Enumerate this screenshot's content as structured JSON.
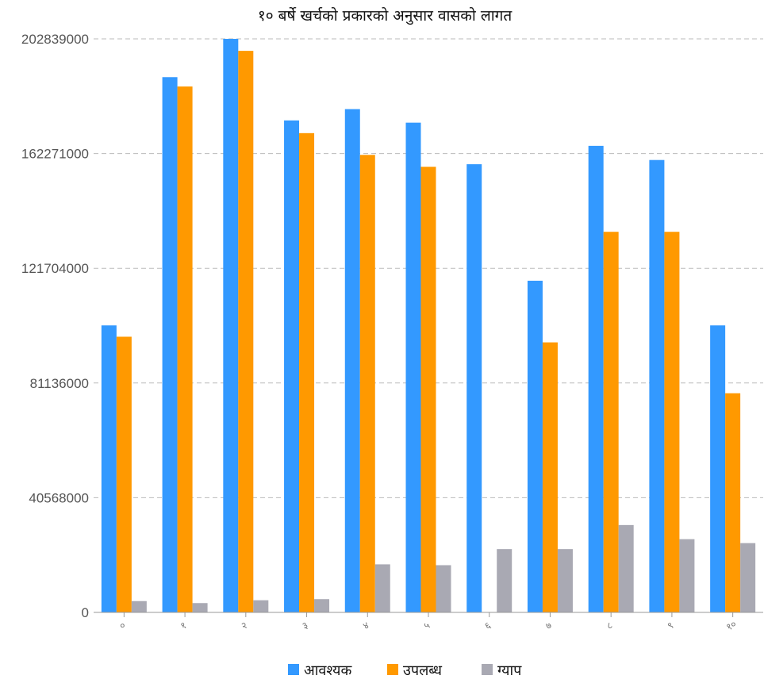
{
  "chart_data": {
    "type": "bar",
    "title": "१० बर्षे खर्चको प्रकारको अनुसार वासको लागत",
    "xlabel": "",
    "ylabel": "",
    "categories": [
      "०",
      "१",
      "२",
      "३",
      "४",
      "५",
      "६",
      "७",
      "८",
      "९",
      "१०"
    ],
    "yticks": [
      "0",
      "40568000",
      "81136000",
      "121704000",
      "162271000",
      "202839000"
    ],
    "ylim": [
      0,
      202839000
    ],
    "grid": true,
    "legend_position": "bottom",
    "series": [
      {
        "name": "आवश्यक",
        "color": "#3399ff",
        "values": [
          101500000,
          189300000,
          202839000,
          174000000,
          178000000,
          173200000,
          158500000,
          117300000,
          165000000,
          160000000,
          101500000
        ]
      },
      {
        "name": "उपलब्ध",
        "color": "#ff9900",
        "values": [
          97500000,
          186000000,
          198600000,
          169500000,
          161800000,
          157600000,
          0,
          95500000,
          134600000,
          134600000,
          77500000
        ]
      },
      {
        "name": "ग्याप",
        "color": "#a9a9b3",
        "values": [
          4000000,
          3300000,
          4300000,
          4700000,
          17000000,
          16700000,
          22400000,
          22400000,
          30900000,
          25900000,
          24500000
        ]
      }
    ]
  }
}
